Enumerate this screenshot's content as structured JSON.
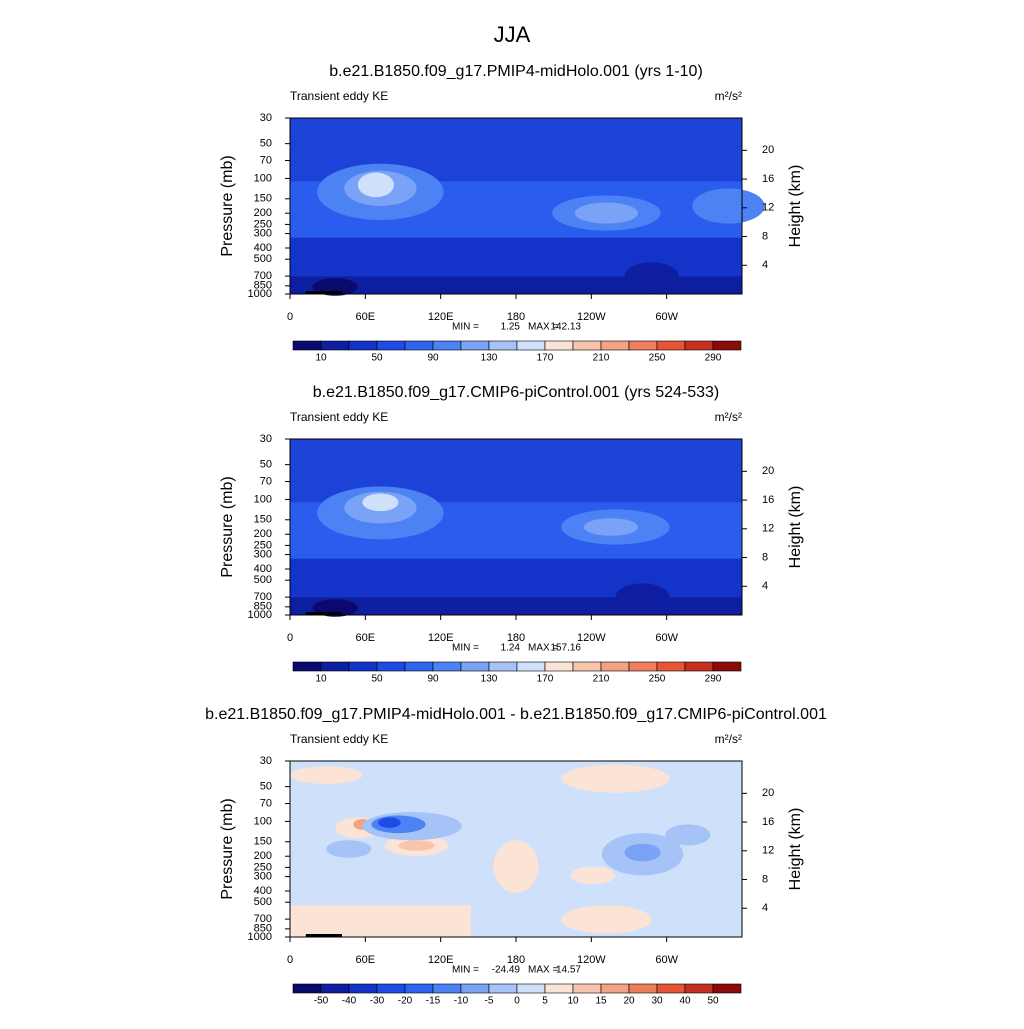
{
  "chart_data": [
    {
      "type": "contour",
      "suptitle": "JJA",
      "title": "b.e21.B1850.f09_g17.PMIP4-midHolo.001 (yrs 1-10)",
      "left_string": "Transient eddy KE",
      "right_string": "m²/s²",
      "ylabel": "Pressure (mb)",
      "y2label": "Height (km)",
      "y_scale": "log",
      "xlim": [
        0,
        360
      ],
      "xticks": [
        0,
        {
          "value": 60,
          "label": "60E"
        },
        {
          "value": 120,
          "label": "120E"
        },
        180,
        {
          "value": 240,
          "label": "120W"
        },
        {
          "value": 300,
          "label": "60W"
        }
      ],
      "ylim": [
        1000,
        30
      ],
      "yticks": [
        30,
        50,
        70,
        100,
        150,
        200,
        250,
        300,
        400,
        500,
        700,
        850,
        1000
      ],
      "y2lim": [
        0,
        24.5
      ],
      "y2ticks": [
        4,
        8,
        12,
        16,
        20
      ],
      "min_label": "MIN =",
      "min": 1.25,
      "max_label": "MAX =",
      "max": 142.13,
      "colorbar_labels": [
        null,
        10,
        null,
        50,
        null,
        90,
        null,
        130,
        null,
        170,
        null,
        210,
        null,
        250,
        null,
        290,
        null
      ],
      "colorbar_colors": [
        "#0a0a6e",
        "#0d1ea0",
        "#1433c8",
        "#1e4be6",
        "#2e64f0",
        "#4d82f5",
        "#7aa2f7",
        "#a6c3f8",
        "#cfe0fb",
        "#fbe3d6",
        "#f7c4ad",
        "#f2a285",
        "#ee7f5d",
        "#e65535",
        "#c53020",
        "#8b0a0a"
      ]
    },
    {
      "type": "contour",
      "title": "b.e21.B1850.f09_g17.CMIP6-piControl.001 (yrs 524-533)",
      "left_string": "Transient eddy KE",
      "right_string": "m²/s²",
      "ylabel": "Pressure (mb)",
      "y2label": "Height (km)",
      "y_scale": "log",
      "xlim": [
        0,
        360
      ],
      "xticks": [
        0,
        {
          "value": 60,
          "label": "60E"
        },
        {
          "value": 120,
          "label": "120E"
        },
        180,
        {
          "value": 240,
          "label": "120W"
        },
        {
          "value": 300,
          "label": "60W"
        }
      ],
      "ylim": [
        1000,
        30
      ],
      "yticks": [
        30,
        50,
        70,
        100,
        150,
        200,
        250,
        300,
        400,
        500,
        700,
        850,
        1000
      ],
      "y2lim": [
        0,
        24.5
      ],
      "y2ticks": [
        4,
        8,
        12,
        16,
        20
      ],
      "min_label": "MIN =",
      "min": 1.24,
      "max_label": "MAX =",
      "max": 157.16,
      "colorbar_labels": [
        null,
        10,
        null,
        50,
        null,
        90,
        null,
        130,
        null,
        170,
        null,
        210,
        null,
        250,
        null,
        290,
        null
      ],
      "colorbar_colors": [
        "#0a0a6e",
        "#0d1ea0",
        "#1433c8",
        "#1e4be6",
        "#2e64f0",
        "#4d82f5",
        "#7aa2f7",
        "#a6c3f8",
        "#cfe0fb",
        "#fbe3d6",
        "#f7c4ad",
        "#f2a285",
        "#ee7f5d",
        "#e65535",
        "#c53020",
        "#8b0a0a"
      ]
    },
    {
      "type": "contour",
      "title": "b.e21.B1850.f09_g17.PMIP4-midHolo.001 - b.e21.B1850.f09_g17.CMIP6-piControl.001",
      "left_string": "Transient eddy KE",
      "right_string": "m²/s²",
      "ylabel": "Pressure (mb)",
      "y2label": "Height (km)",
      "y_scale": "log",
      "xlim": [
        0,
        360
      ],
      "xticks": [
        0,
        {
          "value": 60,
          "label": "60E"
        },
        {
          "value": 120,
          "label": "120E"
        },
        180,
        {
          "value": 240,
          "label": "120W"
        },
        {
          "value": 300,
          "label": "60W"
        }
      ],
      "ylim": [
        1000,
        30
      ],
      "yticks": [
        30,
        50,
        70,
        100,
        150,
        200,
        250,
        300,
        400,
        500,
        700,
        850,
        1000
      ],
      "y2lim": [
        0,
        24.5
      ],
      "y2ticks": [
        4,
        8,
        12,
        16,
        20
      ],
      "min_label": "MIN =",
      "min": -24.49,
      "max_label": "MAX =",
      "max": 14.57,
      "colorbar_labels": [
        null,
        -50,
        -40,
        -30,
        -20,
        -15,
        -10,
        -5,
        0,
        5,
        10,
        15,
        20,
        30,
        40,
        50,
        null
      ],
      "colorbar_colors": [
        "#0a0a6e",
        "#0d1ea0",
        "#1433c8",
        "#1e4be6",
        "#2e64f0",
        "#4d82f5",
        "#7aa2f7",
        "#a6c3f8",
        "#cfe0fb",
        "#fbe3d6",
        "#f7c4ad",
        "#f2a285",
        "#ee7f5d",
        "#e65535",
        "#c53020",
        "#8b0a0a"
      ]
    }
  ]
}
